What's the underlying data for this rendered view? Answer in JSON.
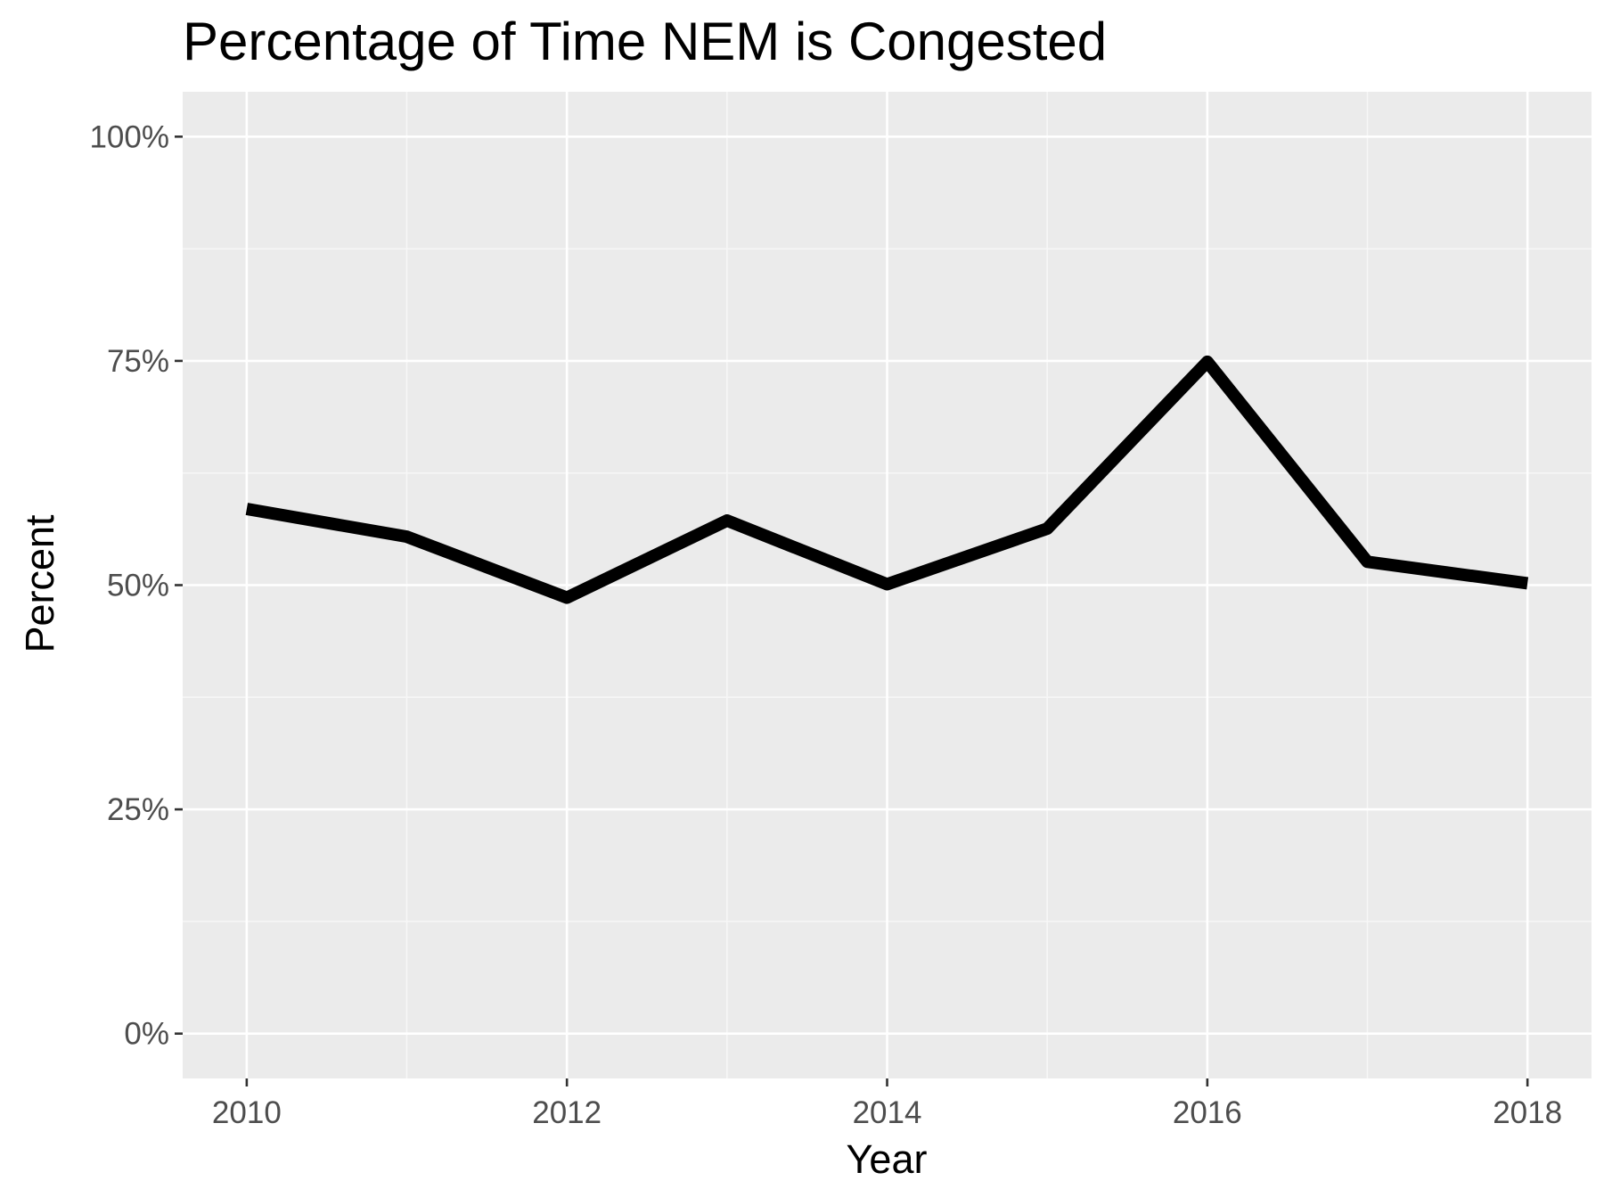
{
  "chart_data": {
    "type": "line",
    "title": "Percentage of Time NEM is Congested",
    "xlabel": "Year",
    "ylabel": "Percent",
    "x": [
      2010,
      2011,
      2012,
      2013,
      2014,
      2015,
      2016,
      2017,
      2018
    ],
    "series": [
      {
        "values": [
          58.5,
          55.4,
          48.6,
          57.2,
          50.1,
          56.3,
          74.9,
          52.6,
          50.2
        ]
      }
    ],
    "xlim": [
      2009.6,
      2018.4
    ],
    "ylim": [
      -5,
      105
    ],
    "x_ticks": [
      2010,
      2012,
      2014,
      2016,
      2018
    ],
    "x_tick_labels": [
      "2010",
      "2012",
      "2014",
      "2016",
      "2018"
    ],
    "y_ticks": [
      0,
      25,
      50,
      75,
      100
    ],
    "y_tick_labels": [
      "0%",
      "25%",
      "50%",
      "75%",
      "100%"
    ],
    "grid": true,
    "colors": {
      "panel_background": "#ebebeb",
      "grid_major": "#ffffff",
      "grid_minor": "#f7f7f7",
      "line": "#000000",
      "tick_text": "#4d4d4d",
      "tick_mark": "#333333"
    }
  }
}
